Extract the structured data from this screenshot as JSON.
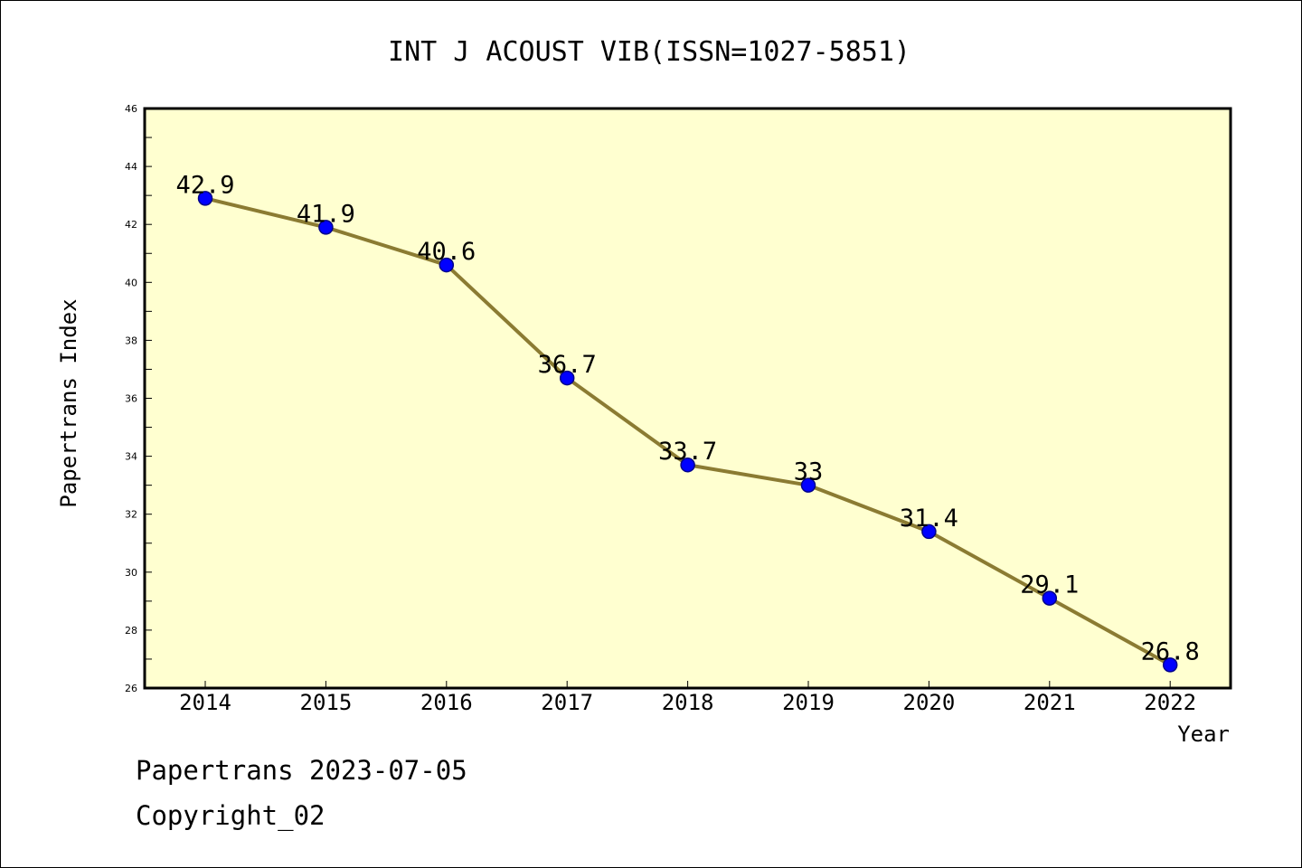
{
  "chart_data": {
    "type": "line",
    "title": "INT J ACOUST VIB(ISSN=1027-5851)",
    "xlabel": "Year",
    "ylabel": "Papertrans Index",
    "categories": [
      "2014",
      "2015",
      "2016",
      "2017",
      "2018",
      "2019",
      "2020",
      "2021",
      "2022"
    ],
    "series": [
      {
        "values": [
          42.9,
          41.9,
          40.6,
          36.7,
          33.7,
          33,
          31.4,
          29.1,
          26.8
        ],
        "labels": [
          "42.9",
          "41.9",
          "40.6",
          "36.7",
          "33.7",
          "33",
          "31.4",
          "29.1",
          "26.8"
        ]
      }
    ],
    "ylim": [
      26,
      46
    ],
    "yticks": [
      "26",
      "28",
      "30",
      "32",
      "34",
      "36",
      "38",
      "40",
      "42",
      "44",
      "46"
    ],
    "grid": false,
    "legend": "none",
    "colors": {
      "plot_background": "#FFFFD0",
      "line": "#8B7B32",
      "marker_fill": "#0000FF",
      "marker_stroke": "#00008B"
    }
  },
  "footer": {
    "line1": "Papertrans 2023-07-05",
    "line2": "Copyright_02"
  }
}
